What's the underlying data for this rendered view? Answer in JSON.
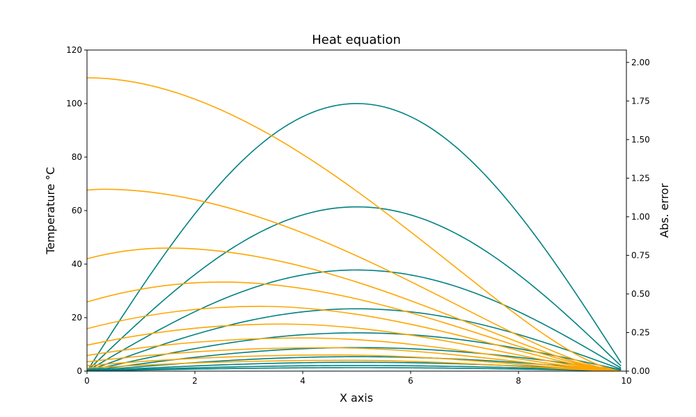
{
  "chart_data": {
    "type": "line",
    "title": "Heat equation",
    "xlabel": "X axis",
    "ylabel": "Temperature °C",
    "y2label": "Abs. error",
    "xlim": [
      0,
      10
    ],
    "ylim": [
      0,
      120
    ],
    "y2lim": [
      0,
      2.08
    ],
    "x_ticks": [
      0,
      2,
      4,
      6,
      8,
      10
    ],
    "y_ticks": [
      0,
      20,
      40,
      60,
      80,
      100,
      120
    ],
    "y2_ticks": [
      0.0,
      0.25,
      0.5,
      0.75,
      1.0,
      1.25,
      1.5,
      1.75,
      2.0
    ],
    "y2_tick_labels": [
      "0.00",
      "0.25",
      "0.50",
      "0.75",
      "1.00",
      "1.25",
      "1.50",
      "1.75",
      "2.00"
    ],
    "grid": false,
    "colors": {
      "temperature": "#008080",
      "error": "#FFA500"
    },
    "temperature_series": {
      "axis": "left",
      "x_start": 0,
      "x_end": 9.9,
      "peaks": [
        100,
        61.4,
        37.8,
        23.3,
        14.3,
        8.8,
        5.4,
        3.3,
        2.1,
        1.3
      ]
    },
    "error_series": {
      "axis": "right",
      "x_start": 0,
      "x_end": 9.9,
      "curves": [
        {
          "y0": 1.9,
          "peak_x": 0.0,
          "peak_y": 1.9
        },
        {
          "y0": 1.172,
          "peak_x": 0.3,
          "peak_y": 1.178
        },
        {
          "y0": 0.728,
          "peak_x": 1.5,
          "peak_y": 0.797
        },
        {
          "y0": 0.448,
          "peak_x": 2.5,
          "peak_y": 0.577
        },
        {
          "y0": 0.275,
          "peak_x": 3.2,
          "peak_y": 0.42
        },
        {
          "y0": 0.168,
          "peak_x": 3.6,
          "peak_y": 0.305
        },
        {
          "y0": 0.101,
          "peak_x": 4.0,
          "peak_y": 0.215
        },
        {
          "y0": 0.06,
          "peak_x": 4.4,
          "peak_y": 0.152
        },
        {
          "y0": 0.035,
          "peak_x": 4.6,
          "peak_y": 0.105
        },
        {
          "y0": 0.02,
          "peak_x": 4.8,
          "peak_y": 0.07
        }
      ]
    }
  }
}
